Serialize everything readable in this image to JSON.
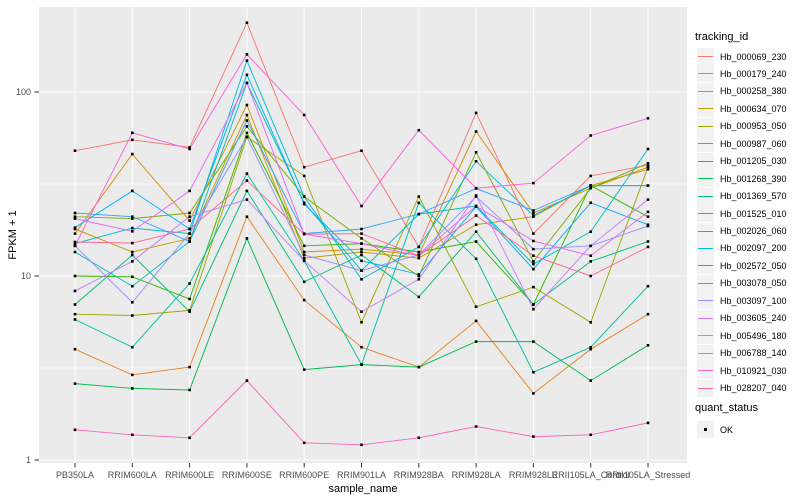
{
  "chart_data": {
    "type": "line",
    "title": "",
    "xlabel": "sample_name",
    "ylabel": "FPKM + 1",
    "y_scale": "log10",
    "ylim": [
      0.95,
      300
    ],
    "y_major_ticks": [
      1,
      10,
      100
    ],
    "y_tick_labels": [
      "1",
      "10",
      "100"
    ],
    "y_minor_gridlines": [
      3.162,
      31.62
    ],
    "grid": true,
    "legend_position": "right",
    "point_marker": "small-black-square",
    "point_color": "#000000",
    "categories": [
      "PB350LA",
      "RRIM600LA",
      "RRIM600LE",
      "RRIM600SE",
      "RRIM600PE",
      "RRIM901LA",
      "RRIM928BA",
      "RRIM928LA",
      "RRIM928LE",
      "RRII105LA_Control",
      "RRII105LA_Stressed"
    ],
    "series": [
      {
        "name": "Hb_000069_230",
        "color": "#F8766D",
        "values": [
          48,
          55,
          50,
          238,
          39,
          48,
          14.4,
          77,
          17,
          35,
          40
        ]
      },
      {
        "name": "Hb_000179_240",
        "color": "#E88526",
        "values": [
          4.0,
          2.9,
          3.2,
          21,
          7.4,
          4.1,
          3.2,
          5.7,
          2.3,
          4.0,
          6.2
        ]
      },
      {
        "name": "Hb_000258_380",
        "color": "#D89000",
        "values": [
          17,
          46,
          20,
          85,
          13.5,
          14,
          13,
          61,
          22,
          30,
          39
        ]
      },
      {
        "name": "Hb_000634_070",
        "color": "#C09B00",
        "values": [
          18,
          13.5,
          16,
          75,
          12.5,
          13.5,
          12.5,
          19,
          21,
          31,
          38
        ]
      },
      {
        "name": "Hb_000953_050",
        "color": "#A3A500",
        "values": [
          6.2,
          6.1,
          6.5,
          57,
          35,
          5.6,
          27,
          6.8,
          8.7,
          5.6,
          39
        ]
      },
      {
        "name": "Hb_000987_060",
        "color": "#7CAE00",
        "values": [
          21,
          20.5,
          22,
          65,
          27,
          16,
          10,
          47,
          12,
          30,
          41
        ]
      },
      {
        "name": "Hb_001205_030",
        "color": "#39B600",
        "values": [
          10,
          9.9,
          7.5,
          60,
          14.6,
          15,
          13.5,
          15.4,
          7.0,
          31,
          21
        ]
      },
      {
        "name": "Hb_001268_390",
        "color": "#00BB4E",
        "values": [
          2.6,
          2.45,
          2.4,
          16,
          3.1,
          3.3,
          3.2,
          4.4,
          4.4,
          2.7,
          4.2
        ]
      },
      {
        "name": "Hb_001369_570",
        "color": "#00BF7D",
        "values": [
          7.0,
          13.0,
          6.4,
          29,
          9.3,
          13,
          7.7,
          17.4,
          7.0,
          12,
          15.4
        ]
      },
      {
        "name": "Hb_001525_010",
        "color": "#00C1A3",
        "values": [
          5.8,
          4.1,
          9.1,
          36,
          12.1,
          3.3,
          25,
          12.4,
          3.0,
          4.1,
          8.8
        ]
      },
      {
        "name": "Hb_002026_060",
        "color": "#00BFC4",
        "values": [
          13.5,
          8.8,
          15.4,
          112,
          25,
          10.7,
          21.7,
          24,
          11.6,
          17.4,
          49
        ]
      },
      {
        "name": "Hb_002097_200",
        "color": "#00BAE0",
        "values": [
          15,
          18.2,
          17,
          148,
          27,
          9.6,
          14.4,
          42,
          21.3,
          31,
          31
        ]
      },
      {
        "name": "Hb_002572_050",
        "color": "#00B0F6",
        "values": [
          18.3,
          29,
          18,
          124,
          24.6,
          12.1,
          10.2,
          23.8,
          10.9,
          25,
          19
        ]
      },
      {
        "name": "Hb_003078_050",
        "color": "#35A2FF",
        "values": [
          22,
          21,
          15.4,
          70,
          17,
          18,
          21.7,
          29.9,
          22.7,
          31,
          31
        ]
      },
      {
        "name": "Hb_003097_100",
        "color": "#9590FF",
        "values": [
          14.6,
          7.2,
          17,
          57,
          13,
          10.7,
          13,
          27,
          14,
          14.6,
          18.7
        ]
      },
      {
        "name": "Hb_003605_240",
        "color": "#C77CFF",
        "values": [
          8.3,
          12,
          21,
          26,
          12.1,
          6.4,
          9.6,
          27.4,
          6.6,
          14.6,
          26
        ]
      },
      {
        "name": "Hb_005496_180",
        "color": "#E76BF3",
        "values": [
          20.5,
          17.5,
          29,
          112,
          16.9,
          15,
          12.9,
          24,
          15.5,
          12.9,
          22.3
        ]
      },
      {
        "name": "Hb_006788_140",
        "color": "#FA62DB",
        "values": [
          14.6,
          60,
          49,
          160,
          75,
          24,
          62,
          30,
          32,
          58,
          72
        ]
      },
      {
        "name": "Hb_010921_030",
        "color": "#FF62BC",
        "values": [
          1.46,
          1.37,
          1.32,
          2.7,
          1.24,
          1.21,
          1.32,
          1.52,
          1.34,
          1.37,
          1.59
        ]
      },
      {
        "name": "Hb_028207_040",
        "color": "#FF6A98",
        "values": [
          15.3,
          15.1,
          18,
          33,
          16.9,
          17,
          12.9,
          21.3,
          12.9,
          10,
          14.4
        ]
      }
    ]
  },
  "legend": {
    "tracking_title": "tracking_id",
    "quant_title": "quant_status",
    "quant_items": [
      "OK"
    ]
  },
  "colors": {
    "panel_bg": "#EBEBEB",
    "gridline": "#FFFFFF",
    "axis_text": "#4D4D4D",
    "tick_mark": "#333333",
    "legend_key_bg": "#F2F2F2"
  }
}
